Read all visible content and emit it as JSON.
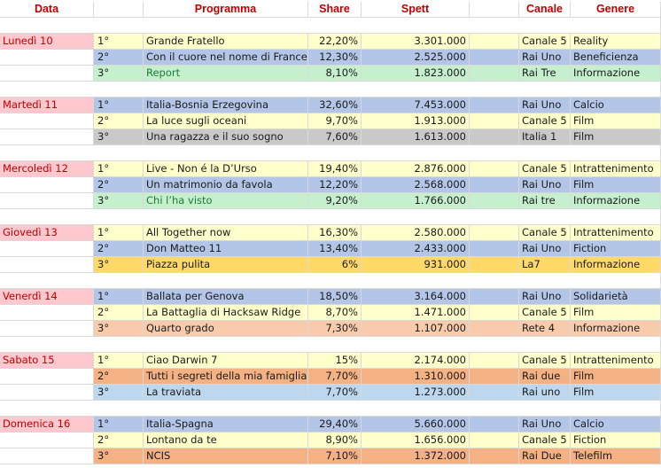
{
  "columns": [
    "Data",
    "Programma",
    "Share",
    "Spett",
    "Canale",
    "Genere"
  ],
  "colors": {
    "header_text": "#c00000",
    "day_fill": "#ffc7ce",
    "yellow": "#ffffcc",
    "blue": "#b4c6e7",
    "green": "#c6efce",
    "gray": "#c9c9c9",
    "gold": "#ffd966",
    "peach": "#f8cbad",
    "salmon": "#f4b183",
    "light_blue": "#bdd7ee"
  },
  "days": [
    {
      "date": "Lunedì 10",
      "rows": [
        {
          "rank": "1°",
          "program": "Grande Fratello",
          "share": "22,20%",
          "viewers": "3.301.000",
          "channel": "Canale 5",
          "genre": "Reality",
          "color": "yellow"
        },
        {
          "rank": "2°",
          "program": "Con il cuore nel nome di Francesco",
          "share": "12,30%",
          "viewers": "2.525.000",
          "channel": "Rai Uno",
          "genre": "Beneficienza",
          "color": "blue"
        },
        {
          "rank": "3°",
          "program": "Report",
          "share": "8,10%",
          "viewers": "1.823.000",
          "channel": "Rai Tre",
          "genre": "Informazione",
          "color": "green"
        }
      ]
    },
    {
      "date": "Martedì 11",
      "rows": [
        {
          "rank": "1°",
          "program": "Italia-Bosnia Erzegovina",
          "share": "32,60%",
          "viewers": "7.453.000",
          "channel": "Rai Uno",
          "genre": "Calcio",
          "color": "blue"
        },
        {
          "rank": "2°",
          "program": "La luce sugli oceani",
          "share": "9,70%",
          "viewers": "1.913.000",
          "channel": "Canale 5",
          "genre": "Film",
          "color": "yellow"
        },
        {
          "rank": "3°",
          "program": "Una ragazza e il suo sogno",
          "share": "7,60%",
          "viewers": "1.613.000",
          "channel": "Italia 1",
          "genre": "Film",
          "color": "gray"
        }
      ]
    },
    {
      "date": "Mercoledì 12",
      "rows": [
        {
          "rank": "1°",
          "program": "Live - Non é la D’Urso",
          "share": "19,40%",
          "viewers": "2.876.000",
          "channel": "Canale 5",
          "genre": "Intrattenimento",
          "color": "yellow"
        },
        {
          "rank": "2°",
          "program": "Un matrimonio da favola",
          "share": "12,20%",
          "viewers": "2.568.000",
          "channel": "Rai Uno",
          "genre": "Film",
          "color": "blue"
        },
        {
          "rank": "3°",
          "program": "Chi l’ha visto",
          "share": "9,20%",
          "viewers": "1.766.000",
          "channel": "Rai tre",
          "genre": "Informazione",
          "color": "green"
        }
      ]
    },
    {
      "date": "Giovedì 13",
      "rows": [
        {
          "rank": "1°",
          "program": "All Together now",
          "share": "16,30%",
          "viewers": "2.580.000",
          "channel": "Canale 5",
          "genre": "Intrattenimento",
          "color": "yellow"
        },
        {
          "rank": "2°",
          "program": "Don Matteo 11",
          "share": "13,40%",
          "viewers": "2.433.000",
          "channel": "Rai Uno",
          "genre": "Fiction",
          "color": "blue"
        },
        {
          "rank": "3°",
          "program": "Piazza pulita",
          "share": "6%",
          "viewers": "931.000",
          "channel": "La7",
          "genre": "Informazione",
          "color": "gold"
        }
      ]
    },
    {
      "date": "Venerdì 14",
      "rows": [
        {
          "rank": "1°",
          "program": "Ballata per Genova",
          "share": "18,50%",
          "viewers": "3.164.000",
          "channel": "Rai Uno",
          "genre": "Solidarietà",
          "color": "blue"
        },
        {
          "rank": "2°",
          "program": "La Battaglia di Hacksaw Ridge",
          "share": "8,70%",
          "viewers": "1.471.000",
          "channel": "Canale 5",
          "genre": "Film",
          "color": "yellow"
        },
        {
          "rank": "3°",
          "program": "Quarto grado",
          "share": "7,30%",
          "viewers": "1.107.000",
          "channel": "Rete 4",
          "genre": "Informazione",
          "color": "peach"
        }
      ]
    },
    {
      "date": "Sabato 15",
      "rows": [
        {
          "rank": "1°",
          "program": "Ciao Darwin 7",
          "share": "15%",
          "viewers": "2.174.000",
          "channel": "Canale 5",
          "genre": "Intrattenimento",
          "color": "yellow"
        },
        {
          "rank": "2°",
          "program": "Tutti i segreti della mia famiglia",
          "share": "7,70%",
          "viewers": "1.310.000",
          "channel": "Rai due",
          "genre": "Film",
          "color": "salmon"
        },
        {
          "rank": "3°",
          "program": "La traviata",
          "share": "7,70%",
          "viewers": "1.273.000",
          "channel": "Rai uno",
          "genre": "Film",
          "color": "light_blue"
        }
      ]
    },
    {
      "date": "Domenica 16",
      "rows": [
        {
          "rank": "1°",
          "program": "Italia-Spagna",
          "share": "29,40%",
          "viewers": "5.660.000",
          "channel": "Rai Uno",
          "genre": "Calcio",
          "color": "blue"
        },
        {
          "rank": "2°",
          "program": "Lontano da te",
          "share": "8,90%",
          "viewers": "1.656.000",
          "channel": "Canale 5",
          "genre": "Fiction",
          "color": "yellow"
        },
        {
          "rank": "3°",
          "program": "NCIS",
          "share": "7,10%",
          "viewers": "1.372.000",
          "channel": "Rai Due",
          "genre": "Telefilm",
          "color": "salmon"
        }
      ]
    }
  ]
}
